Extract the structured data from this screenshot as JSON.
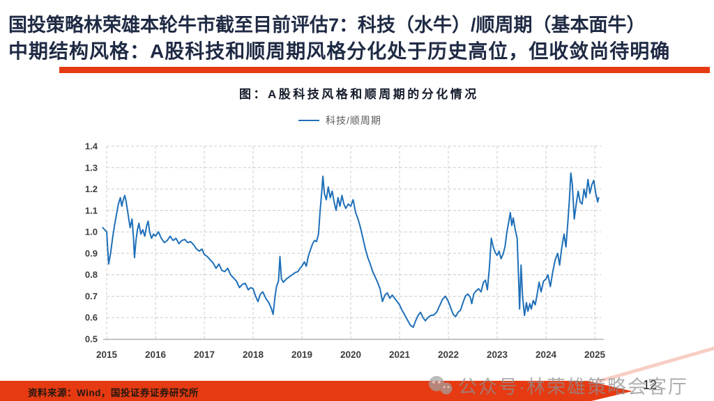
{
  "slide": {
    "title_line1": "国投策略林荣雄本轮牛市截至目前评估7：科技（水牛）/顺周期（基本面牛）",
    "title_line2": "中期结构风格：A股科技和顺周期风格分化处于历史高位，但收敛尚待明确",
    "watermark_text": "公众号·林荣雄策略会客厅",
    "footer": {
      "source_note": "资料来源：Wind，国投证券证券研究所",
      "page_number": "12"
    },
    "colors": {
      "title": "#1f2a44",
      "underline": "#e63a12",
      "footer_band": "#e63a12",
      "footer_streak": "#f2a694",
      "watermark": "#8f8f8f"
    }
  },
  "chart_data": {
    "type": "line",
    "title": "图：A股科技风格和顺周期的分化情况",
    "xlabel": "",
    "ylabel": "",
    "xlim": [
      2014.9,
      2025.3
    ],
    "ylim": [
      0.5,
      1.4
    ],
    "grid": "dashed, both axes",
    "legend_position": "top center",
    "x_ticks": [
      2015,
      2016,
      2017,
      2018,
      2019,
      2020,
      2021,
      2022,
      2023,
      2024,
      2025
    ],
    "y_ticks": [
      1.4,
      1.3,
      1.2,
      1.1,
      1.0,
      0.9,
      0.8,
      0.7,
      0.6,
      0.5
    ],
    "legend": [
      {
        "name": "科技/顺周期",
        "color": "#1e6fb8"
      }
    ],
    "series": [
      {
        "name": "科技/顺周期",
        "color": "#1e6fb8",
        "points": [
          [
            2014.92,
            1.02
          ],
          [
            2015.0,
            1.0
          ],
          [
            2015.04,
            0.85
          ],
          [
            2015.08,
            0.9
          ],
          [
            2015.12,
            0.97
          ],
          [
            2015.16,
            1.03
          ],
          [
            2015.2,
            1.08
          ],
          [
            2015.24,
            1.13
          ],
          [
            2015.28,
            1.16
          ],
          [
            2015.31,
            1.12
          ],
          [
            2015.34,
            1.15
          ],
          [
            2015.37,
            1.17
          ],
          [
            2015.4,
            1.14
          ],
          [
            2015.44,
            1.08
          ],
          [
            2015.48,
            1.02
          ],
          [
            2015.52,
            1.06
          ],
          [
            2015.55,
            0.97
          ],
          [
            2015.57,
            0.88
          ],
          [
            2015.6,
            0.96
          ],
          [
            2015.63,
            1.01
          ],
          [
            2015.66,
            1.04
          ],
          [
            2015.7,
            0.99
          ],
          [
            2015.74,
            1.01
          ],
          [
            2015.78,
            0.98
          ],
          [
            2015.82,
            1.03
          ],
          [
            2015.85,
            1.05
          ],
          [
            2015.88,
            1.0
          ],
          [
            2015.92,
            0.97
          ],
          [
            2015.96,
            0.99
          ],
          [
            2016.0,
            0.98
          ],
          [
            2016.06,
            1.0
          ],
          [
            2016.12,
            0.97
          ],
          [
            2016.18,
            0.95
          ],
          [
            2016.24,
            0.96
          ],
          [
            2016.3,
            0.98
          ],
          [
            2016.36,
            0.96
          ],
          [
            2016.42,
            0.97
          ],
          [
            2016.48,
            0.945
          ],
          [
            2016.54,
            0.96
          ],
          [
            2016.6,
            0.965
          ],
          [
            2016.66,
            0.95
          ],
          [
            2016.72,
            0.955
          ],
          [
            2016.78,
            0.94
          ],
          [
            2016.84,
            0.92
          ],
          [
            2016.9,
            0.91
          ],
          [
            2016.95,
            0.92
          ],
          [
            2017.0,
            0.895
          ],
          [
            2017.06,
            0.885
          ],
          [
            2017.12,
            0.87
          ],
          [
            2017.18,
            0.855
          ],
          [
            2017.24,
            0.83
          ],
          [
            2017.3,
            0.85
          ],
          [
            2017.36,
            0.82
          ],
          [
            2017.42,
            0.815
          ],
          [
            2017.48,
            0.83
          ],
          [
            2017.54,
            0.8
          ],
          [
            2017.6,
            0.785
          ],
          [
            2017.66,
            0.77
          ],
          [
            2017.72,
            0.74
          ],
          [
            2017.78,
            0.755
          ],
          [
            2017.84,
            0.76
          ],
          [
            2017.9,
            0.73
          ],
          [
            2017.95,
            0.74
          ],
          [
            2018.0,
            0.735
          ],
          [
            2018.05,
            0.7
          ],
          [
            2018.1,
            0.675
          ],
          [
            2018.15,
            0.71
          ],
          [
            2018.2,
            0.72
          ],
          [
            2018.26,
            0.69
          ],
          [
            2018.32,
            0.67
          ],
          [
            2018.37,
            0.645
          ],
          [
            2018.41,
            0.615
          ],
          [
            2018.45,
            0.7
          ],
          [
            2018.48,
            0.745
          ],
          [
            2018.52,
            0.77
          ],
          [
            2018.55,
            0.885
          ],
          [
            2018.58,
            0.78
          ],
          [
            2018.62,
            0.765
          ],
          [
            2018.68,
            0.78
          ],
          [
            2018.74,
            0.79
          ],
          [
            2018.8,
            0.8
          ],
          [
            2018.86,
            0.81
          ],
          [
            2018.92,
            0.815
          ],
          [
            2018.96,
            0.83
          ],
          [
            2019.0,
            0.84
          ],
          [
            2019.05,
            0.86
          ],
          [
            2019.09,
            0.84
          ],
          [
            2019.13,
            0.885
          ],
          [
            2019.18,
            0.92
          ],
          [
            2019.22,
            0.945
          ],
          [
            2019.26,
            0.96
          ],
          [
            2019.3,
            0.955
          ],
          [
            2019.34,
            0.99
          ],
          [
            2019.37,
            1.09
          ],
          [
            2019.4,
            1.17
          ],
          [
            2019.43,
            1.26
          ],
          [
            2019.46,
            1.18
          ],
          [
            2019.5,
            1.15
          ],
          [
            2019.54,
            1.21
          ],
          [
            2019.58,
            1.16
          ],
          [
            2019.62,
            1.19
          ],
          [
            2019.66,
            1.14
          ],
          [
            2019.7,
            1.1
          ],
          [
            2019.74,
            1.16
          ],
          [
            2019.78,
            1.12
          ],
          [
            2019.82,
            1.17
          ],
          [
            2019.86,
            1.13
          ],
          [
            2019.9,
            1.11
          ],
          [
            2019.95,
            1.13
          ],
          [
            2020.0,
            1.12
          ],
          [
            2020.05,
            1.15
          ],
          [
            2020.1,
            1.09
          ],
          [
            2020.15,
            1.06
          ],
          [
            2020.2,
            1.02
          ],
          [
            2020.25,
            0.97
          ],
          [
            2020.3,
            0.92
          ],
          [
            2020.35,
            0.88
          ],
          [
            2020.4,
            0.85
          ],
          [
            2020.45,
            0.815
          ],
          [
            2020.5,
            0.79
          ],
          [
            2020.55,
            0.765
          ],
          [
            2020.6,
            0.735
          ],
          [
            2020.65,
            0.675
          ],
          [
            2020.7,
            0.705
          ],
          [
            2020.75,
            0.715
          ],
          [
            2020.8,
            0.69
          ],
          [
            2020.85,
            0.705
          ],
          [
            2020.9,
            0.69
          ],
          [
            2020.95,
            0.675
          ],
          [
            2021.0,
            0.66
          ],
          [
            2021.05,
            0.635
          ],
          [
            2021.1,
            0.615
          ],
          [
            2021.16,
            0.59
          ],
          [
            2021.22,
            0.565
          ],
          [
            2021.28,
            0.555
          ],
          [
            2021.33,
            0.585
          ],
          [
            2021.38,
            0.61
          ],
          [
            2021.43,
            0.625
          ],
          [
            2021.48,
            0.6
          ],
          [
            2021.53,
            0.585
          ],
          [
            2021.58,
            0.6
          ],
          [
            2021.64,
            0.61
          ],
          [
            2021.7,
            0.612
          ],
          [
            2021.76,
            0.625
          ],
          [
            2021.82,
            0.655
          ],
          [
            2021.88,
            0.685
          ],
          [
            2021.94,
            0.7
          ],
          [
            2022.0,
            0.675
          ],
          [
            2022.05,
            0.645
          ],
          [
            2022.1,
            0.615
          ],
          [
            2022.15,
            0.605
          ],
          [
            2022.2,
            0.625
          ],
          [
            2022.25,
            0.635
          ],
          [
            2022.3,
            0.67
          ],
          [
            2022.35,
            0.7
          ],
          [
            2022.4,
            0.71
          ],
          [
            2022.45,
            0.695
          ],
          [
            2022.48,
            0.665
          ],
          [
            2022.52,
            0.71
          ],
          [
            2022.57,
            0.725
          ],
          [
            2022.62,
            0.735
          ],
          [
            2022.67,
            0.72
          ],
          [
            2022.72,
            0.765
          ],
          [
            2022.76,
            0.775
          ],
          [
            2022.8,
            0.73
          ],
          [
            2022.84,
            0.83
          ],
          [
            2022.88,
            0.97
          ],
          [
            2022.92,
            0.93
          ],
          [
            2022.96,
            0.905
          ],
          [
            2023.0,
            0.89
          ],
          [
            2023.04,
            0.91
          ],
          [
            2023.08,
            0.875
          ],
          [
            2023.12,
            0.895
          ],
          [
            2023.16,
            0.93
          ],
          [
            2023.2,
            1.0
          ],
          [
            2023.24,
            1.05
          ],
          [
            2023.27,
            1.09
          ],
          [
            2023.3,
            1.03
          ],
          [
            2023.33,
            1.065
          ],
          [
            2023.37,
            1.01
          ],
          [
            2023.41,
            0.97
          ],
          [
            2023.44,
            0.78
          ],
          [
            2023.46,
            0.64
          ],
          [
            2023.49,
            0.845
          ],
          [
            2023.52,
            0.7
          ],
          [
            2023.56,
            0.61
          ],
          [
            2023.6,
            0.67
          ],
          [
            2023.63,
            0.63
          ],
          [
            2023.67,
            0.665
          ],
          [
            2023.7,
            0.64
          ],
          [
            2023.74,
            0.68
          ],
          [
            2023.78,
            0.66
          ],
          [
            2023.82,
            0.71
          ],
          [
            2023.86,
            0.765
          ],
          [
            2023.9,
            0.72
          ],
          [
            2023.95,
            0.77
          ],
          [
            2024.0,
            0.78
          ],
          [
            2024.04,
            0.8
          ],
          [
            2024.09,
            0.745
          ],
          [
            2024.14,
            0.815
          ],
          [
            2024.19,
            0.87
          ],
          [
            2024.24,
            0.9
          ],
          [
            2024.28,
            0.845
          ],
          [
            2024.32,
            0.92
          ],
          [
            2024.37,
            0.99
          ],
          [
            2024.41,
            0.93
          ],
          [
            2024.45,
            1.05
          ],
          [
            2024.48,
            1.15
          ],
          [
            2024.51,
            1.275
          ],
          [
            2024.54,
            1.22
          ],
          [
            2024.58,
            1.06
          ],
          [
            2024.62,
            1.13
          ],
          [
            2024.66,
            1.19
          ],
          [
            2024.7,
            1.14
          ],
          [
            2024.74,
            1.13
          ],
          [
            2024.78,
            1.2
          ],
          [
            2024.82,
            1.16
          ],
          [
            2024.86,
            1.245
          ],
          [
            2024.9,
            1.18
          ],
          [
            2024.94,
            1.22
          ],
          [
            2024.98,
            1.24
          ],
          [
            2025.02,
            1.18
          ],
          [
            2025.06,
            1.14
          ],
          [
            2025.08,
            1.16
          ]
        ]
      }
    ]
  }
}
